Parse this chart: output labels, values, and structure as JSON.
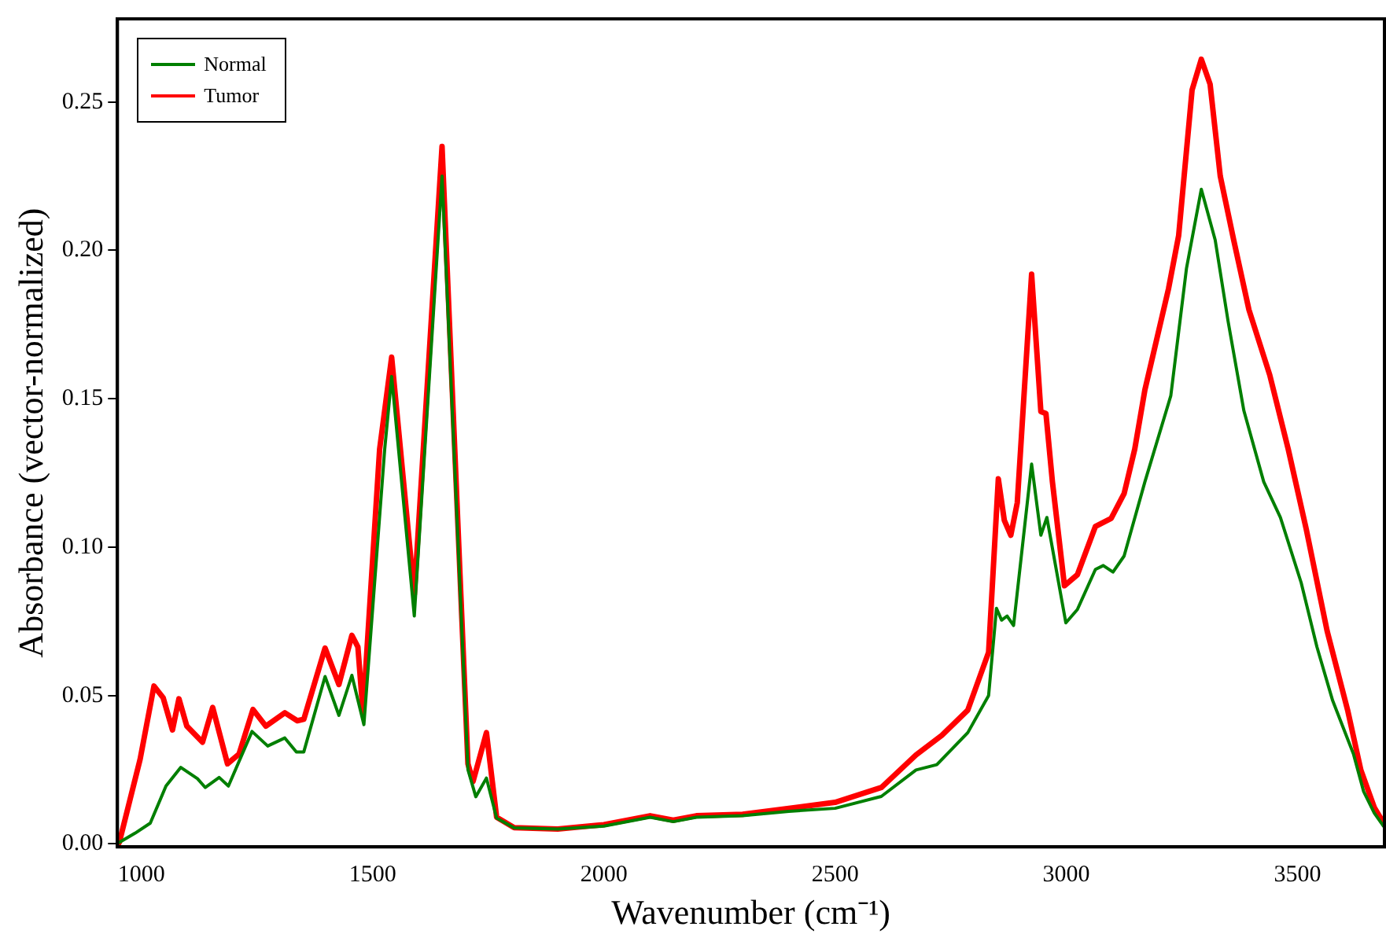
{
  "chart_data": {
    "type": "line",
    "xlabel": "Wavenumber (cm⁻¹)",
    "ylabel": "Absorbance (vector-normalized)",
    "xlim": [
      948,
      3688
    ],
    "ylim": [
      -0.001,
      0.278
    ],
    "xticks": [
      1000,
      1500,
      2000,
      2500,
      3000,
      3500
    ],
    "yticks": [
      {
        "value": 0,
        "label": "0.00"
      },
      {
        "value": 0.05,
        "label": "0.05"
      },
      {
        "value": 0.1,
        "label": "0.10"
      },
      {
        "value": 0.15,
        "label": "0.15"
      },
      {
        "value": 0.2,
        "label": "0.20"
      },
      {
        "value": 0.25,
        "label": "0.25"
      }
    ],
    "grid": false,
    "legend": "top left",
    "marker": "none",
    "line_style": "solid",
    "series": [
      {
        "name": "Normal",
        "color": "#007f00",
        "x": [
          952,
          986,
          1019,
          1053,
          1085,
          1121,
          1138,
          1168,
          1188,
          1239,
          1273,
          1310,
          1335,
          1351,
          1397,
          1427,
          1455,
          1481,
          1526,
          1541,
          1590,
          1650,
          1706,
          1723,
          1746,
          1768,
          1806,
          1900,
          2000,
          2100,
          2150,
          2200,
          2300,
          2400,
          2500,
          2600,
          2675,
          2720,
          2787,
          2832,
          2849,
          2860,
          2872,
          2886,
          2925,
          2945,
          2958,
          2999,
          3024,
          3063,
          3080,
          3101,
          3125,
          3170,
          3226,
          3260,
          3292,
          3322,
          3350,
          3384,
          3427,
          3463,
          3508,
          3542,
          3576,
          3621,
          3643,
          3666,
          3686
        ],
        "values": [
          0.0005,
          0.0036,
          0.007,
          0.0195,
          0.0258,
          0.022,
          0.019,
          0.0224,
          0.0195,
          0.0379,
          0.033,
          0.0357,
          0.031,
          0.031,
          0.0564,
          0.0433,
          0.0568,
          0.0402,
          0.133,
          0.1575,
          0.0768,
          0.225,
          0.025,
          0.0159,
          0.0222,
          0.0087,
          0.0054,
          0.005,
          0.006,
          0.009,
          0.0075,
          0.009,
          0.0095,
          0.011,
          0.012,
          0.016,
          0.0249,
          0.0267,
          0.0375,
          0.05,
          0.0794,
          0.0754,
          0.0768,
          0.0736,
          0.128,
          0.104,
          0.11,
          0.0745,
          0.079,
          0.0925,
          0.0938,
          0.0916,
          0.097,
          0.122,
          0.151,
          0.194,
          0.2206,
          0.2035,
          0.176,
          0.146,
          0.122,
          0.11,
          0.088,
          0.0664,
          0.0483,
          0.0303,
          0.0177,
          0.0104,
          0.006
        ]
      },
      {
        "name": "Tumor",
        "color": "#ff0000",
        "x": [
          952,
          997,
          1027,
          1047,
          1067,
          1081,
          1098,
          1132,
          1154,
          1186,
          1211,
          1241,
          1269,
          1310,
          1337,
          1351,
          1397,
          1427,
          1455,
          1468,
          1479,
          1515,
          1541,
          1590,
          1650,
          1706,
          1717,
          1746,
          1768,
          1806,
          1900,
          2000,
          2100,
          2150,
          2200,
          2300,
          2400,
          2500,
          2600,
          2675,
          2731,
          2787,
          2832,
          2853,
          2866,
          2880,
          2894,
          2925,
          2945,
          2956,
          2970,
          2996,
          3024,
          3063,
          3097,
          3125,
          3148,
          3170,
          3221,
          3243,
          3272,
          3292,
          3311,
          3333,
          3362,
          3395,
          3440,
          3480,
          3519,
          3564,
          3609,
          3637,
          3666,
          3686
        ],
        "values": [
          0.0005,
          0.0285,
          0.0532,
          0.0492,
          0.0384,
          0.0489,
          0.0397,
          0.0343,
          0.046,
          0.027,
          0.0303,
          0.0453,
          0.0397,
          0.0442,
          0.0415,
          0.042,
          0.066,
          0.0537,
          0.0703,
          0.0664,
          0.0442,
          0.133,
          0.164,
          0.084,
          0.235,
          0.027,
          0.021,
          0.0375,
          0.009,
          0.0055,
          0.005,
          0.0065,
          0.0095,
          0.008,
          0.0095,
          0.01,
          0.012,
          0.014,
          0.019,
          0.03,
          0.0366,
          0.0451,
          0.0646,
          0.123,
          0.109,
          0.104,
          0.115,
          0.192,
          0.1457,
          0.145,
          0.122,
          0.087,
          0.0907,
          0.107,
          0.1097,
          0.118,
          0.133,
          0.153,
          0.187,
          0.205,
          0.254,
          0.2644,
          0.256,
          0.225,
          0.2035,
          0.18,
          0.158,
          0.133,
          0.106,
          0.0718,
          0.0447,
          0.0249,
          0.0123,
          0.0071
        ]
      }
    ]
  }
}
